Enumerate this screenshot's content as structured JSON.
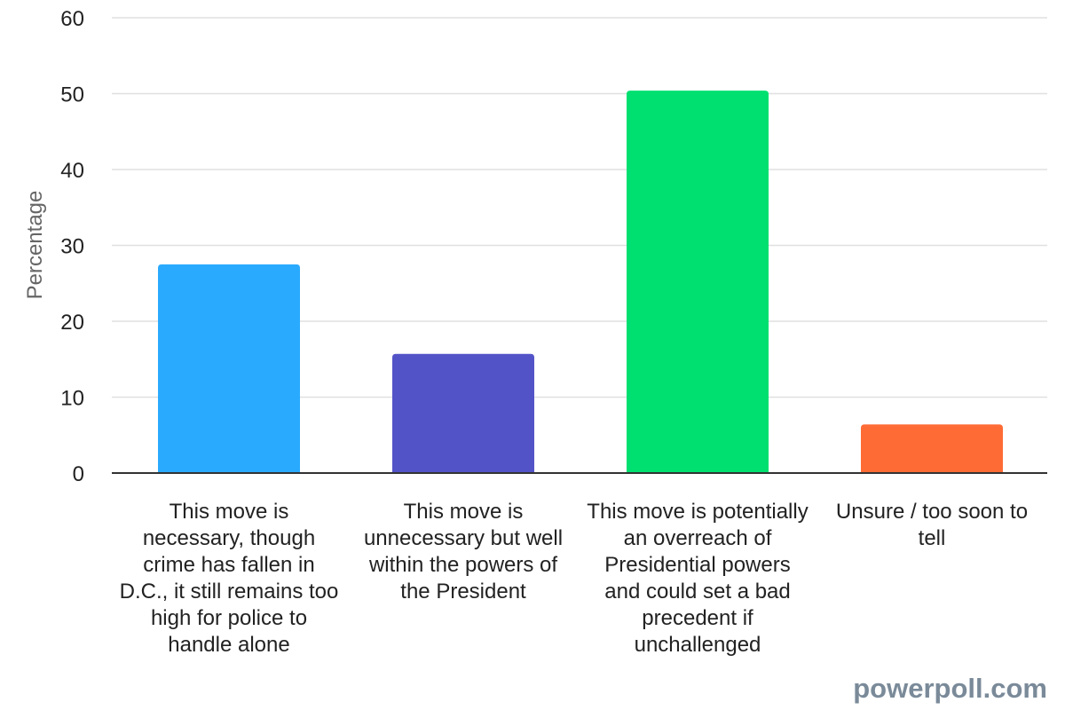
{
  "chart_data": {
    "type": "bar",
    "title": "",
    "xlabel": "",
    "ylabel": "Percentage",
    "ylim": [
      0,
      60
    ],
    "yticks": [
      0,
      10,
      20,
      30,
      40,
      50,
      60
    ],
    "grid": true,
    "legend": "none",
    "categories": [
      "This move is necessary, though crime has fallen in D.C., it still remains too high for police to handle alone",
      "This move is unnecessary but well within the powers of the President",
      "This move is potentially an overreach of Presidential powers and could set a bad precedent if unchallenged",
      "Unsure / too soon to tell"
    ],
    "values": [
      27.5,
      15.7,
      50.4,
      6.4
    ],
    "colors": [
      "#2aaaff",
      "#5353c8",
      "#00e070",
      "#ff6b35"
    ]
  },
  "watermark": "powerpoll.com"
}
